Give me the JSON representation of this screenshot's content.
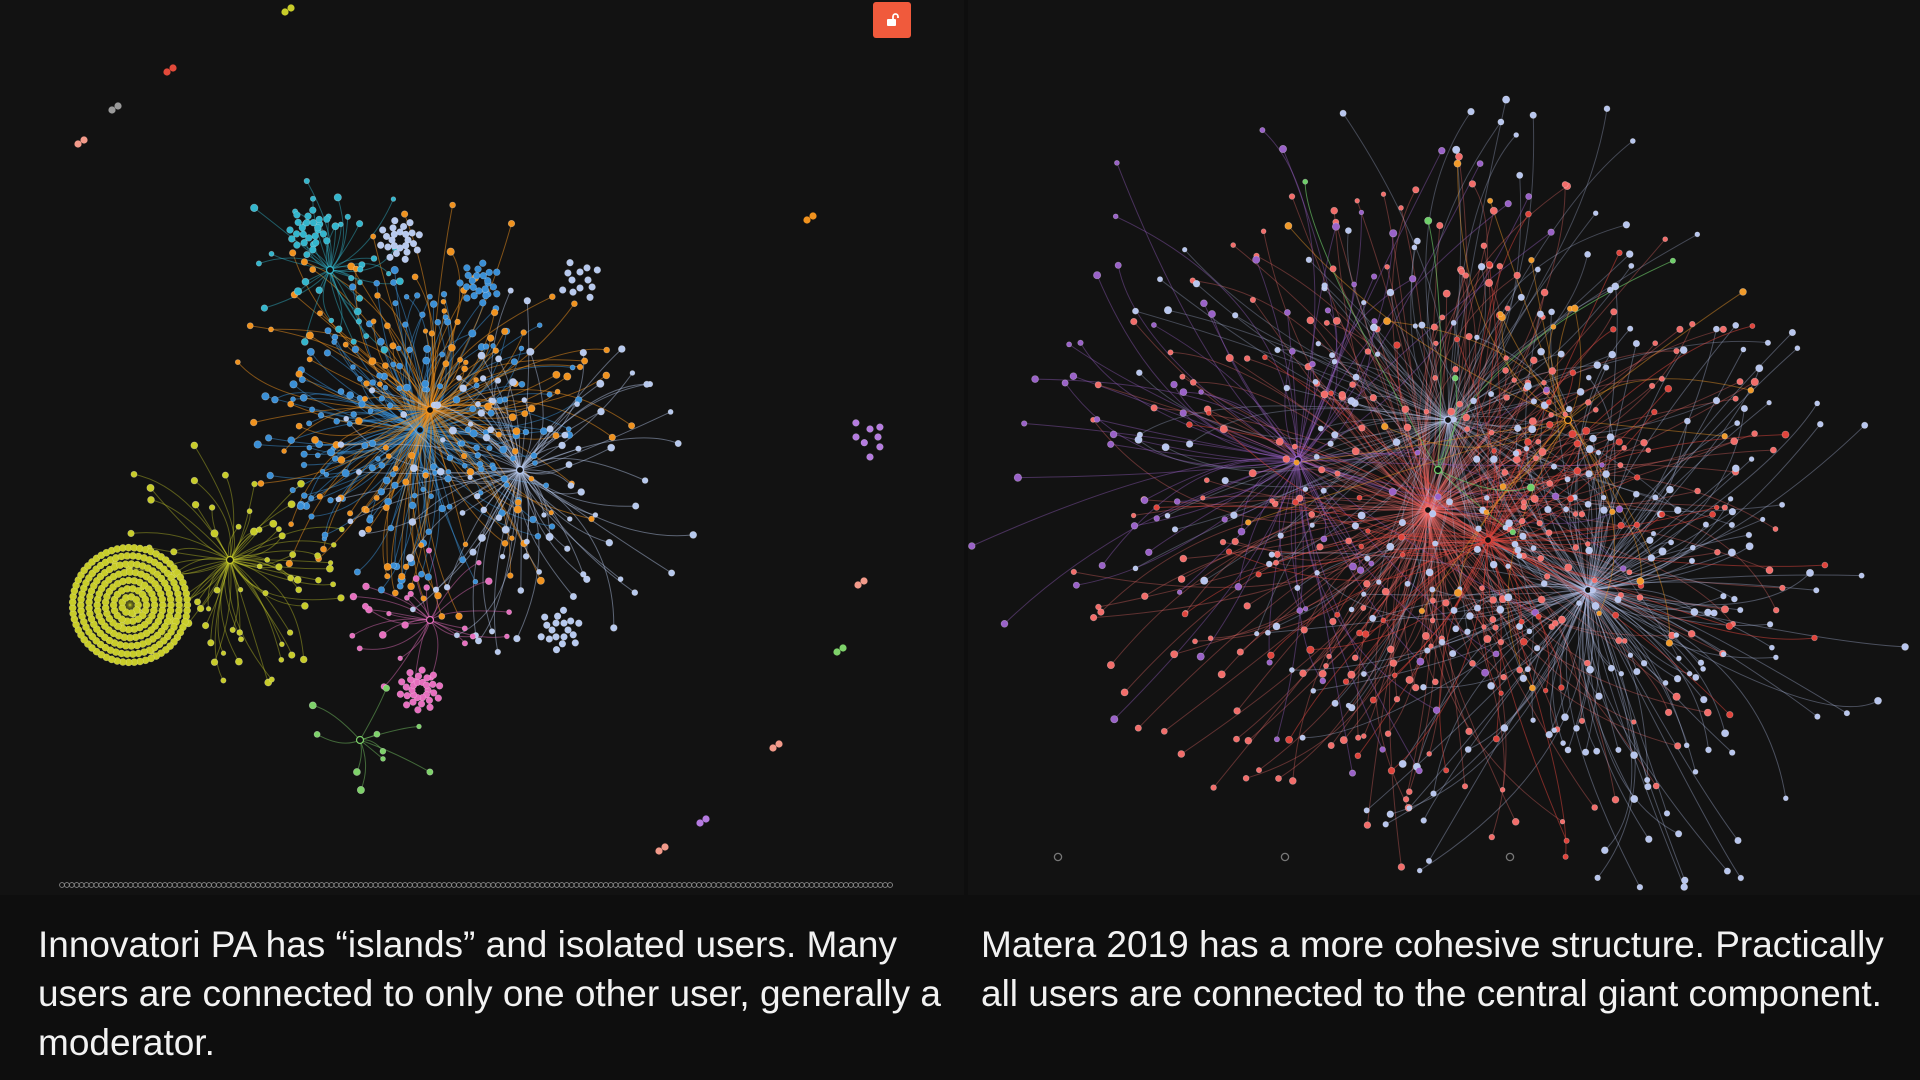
{
  "left_graph": {
    "colors": {
      "blue": "#3a8fd6",
      "orange": "#f0921e",
      "yellow": "#c8cc2a",
      "pink": "#e76fbf",
      "cyan": "#33b5cc",
      "lightblue": "#b7c9ee",
      "green": "#7ed26a",
      "gray": "#9a9a9a",
      "purple": "#b57be0"
    }
  },
  "right_graph": {
    "colors": {
      "salmon": "#f26d6a",
      "red": "#e0443c",
      "lavender": "#b8c6ee",
      "purple": "#9a62c8",
      "orange": "#f09a2a",
      "green": "#6fd06a",
      "gray": "#777777"
    }
  },
  "lock_button": {
    "icon": "unlocked-padlock-icon",
    "color": "#f05a3c"
  },
  "captions": {
    "left": "Innovatori PA has “islands” and isolated users. Many users are connected to only one other user, generally a moderator.",
    "right": "Matera 2019 has a more cohesive structure. Practically all users are connected to the central giant component."
  }
}
